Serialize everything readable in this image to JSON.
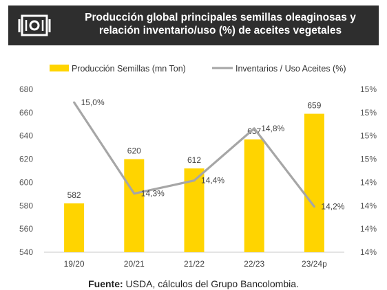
{
  "header": {
    "title": "Producción global principales semillas oleaginosas y relación inventario/uso (%) de aceites vegetales",
    "icon": "money-icon"
  },
  "footer": {
    "label": "Fuente:",
    "text": "USDA, cálculos del Grupo Bancolombia."
  },
  "colors": {
    "bar": "#ffd400",
    "line": "#a6a6a6",
    "header_bg": "#2e2e2e"
  },
  "chart_data": {
    "type": "bar",
    "categories": [
      "19/20",
      "20/21",
      "21/22",
      "22/23",
      "23/24p"
    ],
    "series": [
      {
        "name": "Producción Semillas (mn Ton)",
        "type": "bar",
        "axis": "left",
        "values": [
          582,
          620,
          612,
          637,
          659
        ],
        "labels": [
          "582",
          "620",
          "612",
          "637",
          "659"
        ]
      },
      {
        "name": "Inventarios / Uso Aceites (%)",
        "type": "line",
        "axis": "right",
        "values": [
          15.0,
          14.3,
          14.4,
          14.8,
          14.2
        ],
        "labels": [
          "15,0%",
          "14,3%",
          "14,4%",
          "14,8%",
          "14,2%"
        ]
      }
    ],
    "left_axis": {
      "ylim": [
        540,
        680
      ],
      "ticks": [
        "540",
        "560",
        "580",
        "600",
        "620",
        "640",
        "660",
        "680"
      ]
    },
    "right_axis": {
      "ylim": [
        13.85,
        15.1
      ],
      "ticks": [
        "14%",
        "14%",
        "14%",
        "14%",
        "15%",
        "15%",
        "15%",
        "15%"
      ]
    },
    "legend_position": "top",
    "grid": false
  }
}
